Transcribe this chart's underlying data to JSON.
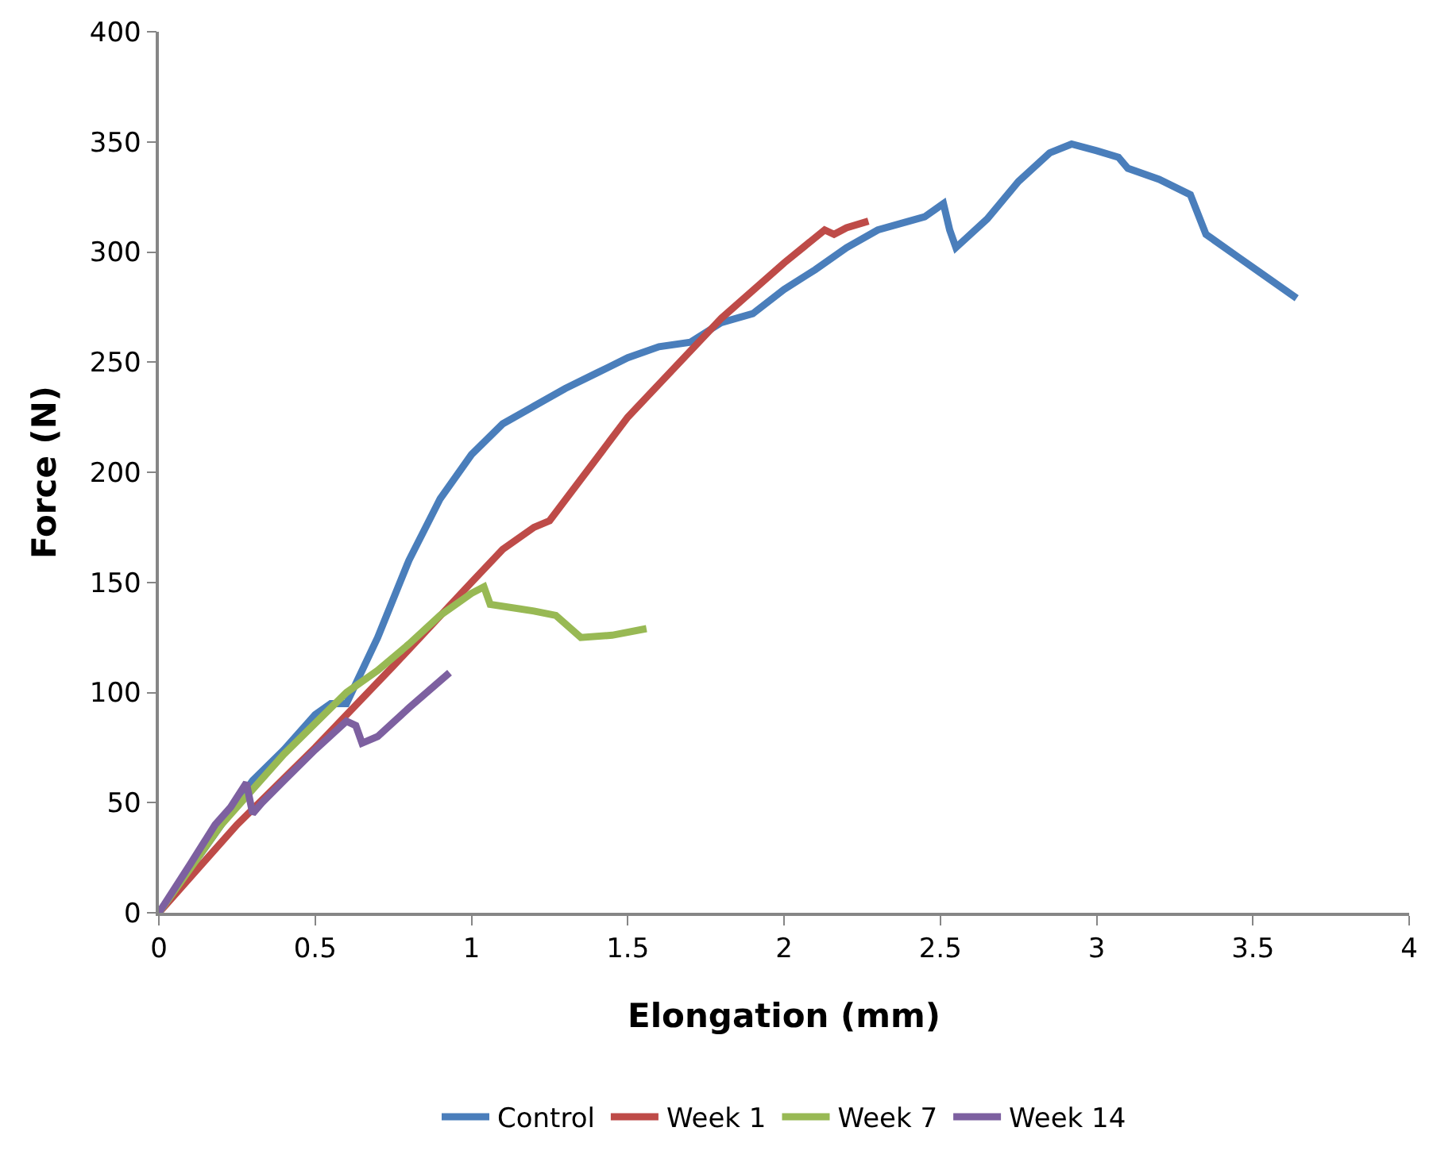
{
  "chart_data": {
    "type": "line",
    "xlabel": "Elongation (mm)",
    "ylabel": "Force (N)",
    "xlim": [
      0,
      4
    ],
    "xticks": [
      0,
      0.5,
      1,
      1.5,
      2,
      2.5,
      3,
      3.5,
      4
    ],
    "ylim": [
      0,
      400
    ],
    "yticks": [
      0,
      50,
      100,
      150,
      200,
      250,
      300,
      350,
      400
    ],
    "grid": false,
    "legend": "bottom",
    "marker": "none",
    "line_style": "solid",
    "series": [
      {
        "name": "Control",
        "color": "#4a7ebb",
        "x": [
          0,
          0.1,
          0.2,
          0.3,
          0.4,
          0.5,
          0.55,
          0.6,
          0.7,
          0.8,
          0.9,
          1.0,
          1.1,
          1.2,
          1.3,
          1.4,
          1.5,
          1.6,
          1.7,
          1.8,
          1.9,
          2.0,
          2.1,
          2.2,
          2.3,
          2.4,
          2.45,
          2.51,
          2.53,
          2.55,
          2.65,
          2.75,
          2.85,
          2.92,
          3.0,
          3.07,
          3.1,
          3.2,
          3.3,
          3.35,
          3.45,
          3.52,
          3.64
        ],
        "values": [
          0,
          20,
          40,
          60,
          74,
          90,
          95,
          95,
          125,
          160,
          188,
          208,
          222,
          230,
          238,
          245,
          252,
          257,
          259,
          268,
          272,
          283,
          292,
          302,
          310,
          314,
          316,
          322,
          310,
          302,
          315,
          332,
          345,
          349,
          346,
          343,
          338,
          333,
          326,
          308,
          298,
          291,
          279
        ]
      },
      {
        "name": "Week 1",
        "color": "#be4b48",
        "x": [
          0,
          0.25,
          0.5,
          0.75,
          1.0,
          1.1,
          1.2,
          1.25,
          1.5,
          1.8,
          2.0,
          2.13,
          2.16,
          2.2,
          2.27
        ],
        "values": [
          0,
          40,
          75,
          112,
          150,
          165,
          175,
          178,
          225,
          270,
          295,
          310,
          308,
          311,
          314
        ]
      },
      {
        "name": "Week 7",
        "color": "#98b954",
        "x": [
          0,
          0.2,
          0.4,
          0.6,
          0.7,
          0.8,
          0.9,
          1.0,
          1.04,
          1.06,
          1.2,
          1.27,
          1.35,
          1.45,
          1.56
        ],
        "values": [
          0,
          40,
          72,
          100,
          110,
          122,
          135,
          145,
          148,
          140,
          137,
          135,
          125,
          126,
          129
        ]
      },
      {
        "name": "Week 14",
        "color": "#7d60a0",
        "x": [
          0,
          0.1,
          0.18,
          0.23,
          0.28,
          0.3,
          0.33,
          0.4,
          0.5,
          0.6,
          0.63,
          0.65,
          0.7,
          0.8,
          0.93
        ],
        "values": [
          0,
          22,
          40,
          48,
          59,
          45,
          50,
          60,
          74,
          87,
          85,
          77,
          80,
          93,
          109
        ]
      }
    ]
  }
}
